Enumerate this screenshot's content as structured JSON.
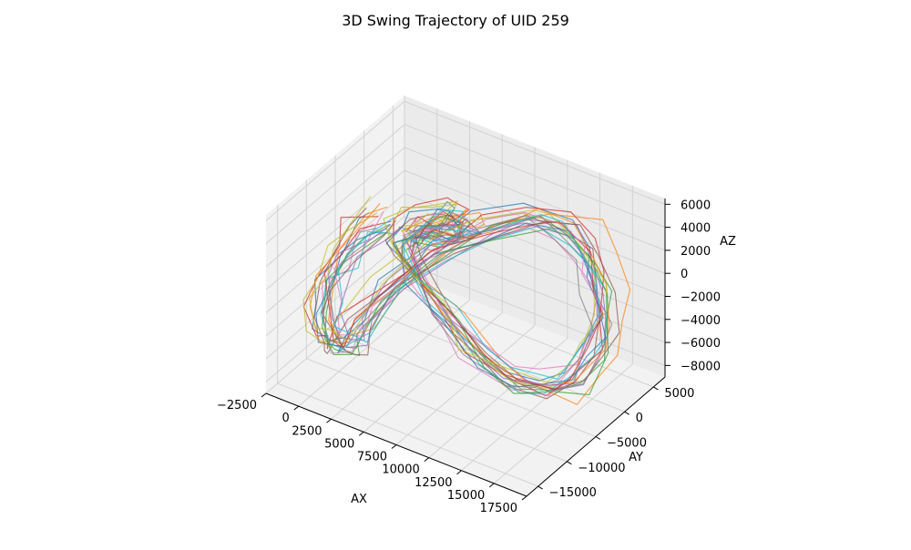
{
  "chart_data": {
    "type": "line3d",
    "title": "3D Swing Trajectory of UID 259",
    "xlabel": "AX",
    "ylabel": "AY",
    "zlabel": "AZ",
    "xlim": [
      -2500,
      17500
    ],
    "ylim": [
      -17000,
      7000
    ],
    "zlim": [
      -9000,
      6500
    ],
    "xticks": [
      -2500,
      0,
      2500,
      5000,
      7500,
      10000,
      12500,
      15000,
      17500
    ],
    "yticks": [
      5000,
      0,
      -5000,
      -10000,
      -15000
    ],
    "zticks": [
      6000,
      4000,
      2000,
      0,
      -2000,
      -4000,
      -6000,
      -8000
    ],
    "xtick_labels": [
      "−2500",
      "0",
      "2500",
      "5000",
      "7500",
      "10000",
      "12500",
      "15000",
      "17500"
    ],
    "ytick_labels": [
      "5000",
      "0",
      "−5000",
      "−10000",
      "−15000"
    ],
    "ztick_labels": [
      "6000",
      "4000",
      "2000",
      "0",
      "−2000",
      "−4000",
      "−6000",
      "−8000"
    ],
    "grid": true,
    "series_count": 20,
    "colors": [
      "#1f77b4",
      "#ff7f0e",
      "#2ca02c",
      "#d62728",
      "#9467bd",
      "#8c564b",
      "#e377c2",
      "#7f7f7f",
      "#bcbd22",
      "#17becf"
    ],
    "trajectory_template": {
      "x": [
        200,
        -500,
        -1500,
        -2000,
        -1500,
        0,
        1500,
        2500,
        3000,
        4000,
        6500,
        9000,
        11500,
        13500,
        15000,
        16000,
        16500,
        16000,
        15000,
        13000,
        10500,
        8000,
        5500,
        3500,
        2000,
        1500,
        2500,
        4000,
        5000,
        5500,
        5000,
        4000,
        3000,
        2500
      ],
      "y": [
        -2500,
        -4000,
        -6000,
        -8000,
        -10000,
        -12000,
        -13500,
        -14000,
        -13000,
        -10500,
        -7500,
        -4500,
        -2000,
        -500,
        0,
        0,
        -500,
        -1500,
        -2500,
        -3000,
        -3000,
        -3500,
        -3500,
        -3500,
        -3000,
        -2000,
        -1000,
        0,
        0,
        -500,
        -1000,
        -1500,
        -2000,
        -2500
      ],
      "z": [
        1000,
        500,
        -1500,
        -3000,
        -4500,
        -5500,
        -5000,
        -4000,
        -2500,
        0,
        3000,
        5000,
        6000,
        5500,
        3500,
        1000,
        -1500,
        -4000,
        -6500,
        -8000,
        -8500,
        -7000,
        -4500,
        -2500,
        -1000,
        0,
        1000,
        2000,
        2500,
        2000,
        1500,
        1000,
        600,
        500
      ]
    }
  }
}
